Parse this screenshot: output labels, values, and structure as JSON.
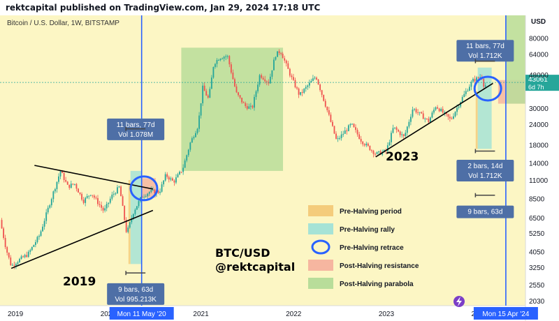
{
  "header": {
    "published": "rektcapital published on TradingView.com, Jan 29, 2024 17:18 UTC"
  },
  "chart_data": {
    "type": "candlestick",
    "symbol_line": "Bitcoin / U.S. Dollar, 1W, BITSTAMP",
    "currency": "USD",
    "scale": "log",
    "y_ticks": [
      2030,
      2550,
      3250,
      4050,
      5250,
      6500,
      8500,
      11000,
      14000,
      18000,
      24000,
      30000,
      48000,
      64000,
      80000
    ],
    "x_ticks": [
      "2019",
      "2020",
      "2021",
      "2022",
      "2023",
      "2024"
    ],
    "x_range": [
      "2018-11",
      "2024-07"
    ],
    "y_range": [
      1900,
      110000
    ],
    "grid": false,
    "price_path": [
      [
        "2018-11-01",
        6300
      ],
      [
        "2018-11-25",
        4200
      ],
      [
        "2018-12-15",
        3300
      ],
      [
        "2019-01-15",
        3600
      ],
      [
        "2019-02-20",
        3900
      ],
      [
        "2019-04-05",
        5100
      ],
      [
        "2019-05-15",
        8000
      ],
      [
        "2019-06-26",
        12500
      ],
      [
        "2019-07-25",
        10000
      ],
      [
        "2019-08-20",
        10500
      ],
      [
        "2019-09-25",
        8200
      ],
      [
        "2019-10-25",
        9200
      ],
      [
        "2019-12-15",
        7100
      ],
      [
        "2020-01-15",
        8800
      ],
      [
        "2020-02-15",
        10000
      ],
      [
        "2020-03-13",
        5200
      ],
      [
        "2020-04-10",
        7100
      ],
      [
        "2020-05-11",
        8700
      ],
      [
        "2020-06-15",
        9400
      ],
      [
        "2020-07-20",
        9300
      ],
      [
        "2020-08-15",
        11800
      ],
      [
        "2020-09-15",
        10700
      ],
      [
        "2020-10-20",
        12800
      ],
      [
        "2020-11-20",
        18500
      ],
      [
        "2020-12-20",
        23500
      ],
      [
        "2021-01-08",
        40000
      ],
      [
        "2021-02-01",
        34000
      ],
      [
        "2021-02-21",
        56000
      ],
      [
        "2021-03-13",
        61000
      ],
      [
        "2021-04-14",
        62500
      ],
      [
        "2021-05-19",
        37000
      ],
      [
        "2021-06-22",
        31000
      ],
      [
        "2021-07-20",
        30000
      ],
      [
        "2021-08-20",
        48000
      ],
      [
        "2021-09-25",
        43000
      ],
      [
        "2021-10-20",
        63000
      ],
      [
        "2021-11-10",
        67000
      ],
      [
        "2021-12-20",
        47000
      ],
      [
        "2022-01-24",
        36000
      ],
      [
        "2022-03-28",
        47000
      ],
      [
        "2022-05-12",
        29000
      ],
      [
        "2022-06-18",
        19000
      ],
      [
        "2022-08-15",
        24000
      ],
      [
        "2022-09-25",
        19000
      ],
      [
        "2022-11-21",
        15800
      ],
      [
        "2022-12-31",
        16500
      ],
      [
        "2023-01-29",
        23000
      ],
      [
        "2023-03-10",
        20000
      ],
      [
        "2023-04-14",
        30000
      ],
      [
        "2023-06-15",
        25000
      ],
      [
        "2023-07-13",
        31000
      ],
      [
        "2023-09-11",
        25500
      ],
      [
        "2023-10-25",
        34500
      ],
      [
        "2023-12-05",
        44000
      ],
      [
        "2024-01-11",
        47000
      ],
      [
        "2024-01-23",
        39500
      ],
      [
        "2024-01-29",
        43061
      ]
    ],
    "current_price": {
      "value": "43061",
      "countdown": "6d 7h"
    },
    "halving_markers": [
      {
        "date": "2020-05-11",
        "label": "Mon 11 May '20"
      },
      {
        "date": "2024-04-15",
        "label": "Mon 15 Apr '24"
      }
    ],
    "zones": [
      {
        "legend": "pre_halving_period",
        "x": [
          "2020-03-20",
          "2020-03-28"
        ],
        "y": [
          3400,
          11000
        ]
      },
      {
        "legend": "pre_halving_rally",
        "x": [
          "2020-03-28",
          "2020-05-11"
        ],
        "y": [
          3400,
          12500
        ]
      },
      {
        "legend": "post_halving_resistance",
        "x": [
          "2020-05-11",
          "2020-07-06"
        ],
        "y": [
          8600,
          11300
        ]
      },
      {
        "legend": "post_halving_parabola",
        "x": [
          "2020-10-15",
          "2021-11-20"
        ],
        "y": [
          12500,
          70000
        ]
      },
      {
        "legend": "pre_halving_period",
        "x": [
          "2023-12-18",
          "2023-12-26"
        ],
        "y": [
          17000,
          38000
        ]
      },
      {
        "legend": "pre_halving_rally",
        "x": [
          "2023-12-26",
          "2024-02-20"
        ],
        "y": [
          17000,
          53000
        ]
      },
      {
        "legend": "post_halving_resistance",
        "x": [
          "2024-03-15",
          "2024-06-30"
        ],
        "y": [
          32000,
          44500
        ]
      },
      {
        "legend": "post_halving_parabola",
        "x": [
          "2024-04-15",
          "2024-06-30"
        ],
        "y": [
          32000,
          110000
        ]
      }
    ],
    "circles": [
      {
        "date": "2020-05-20",
        "price": 9800
      },
      {
        "date": "2024-02-05",
        "price": 39500
      }
    ],
    "trendlines": [
      {
        "from": [
          "2018-12-15",
          3200
        ],
        "to": [
          "2020-06-25",
          7200
        ]
      },
      {
        "from": [
          "2019-03-15",
          13500
        ],
        "to": [
          "2020-06-25",
          9700
        ]
      },
      {
        "from": [
          "2022-11-20",
          15200
        ],
        "to": [
          "2024-02-25",
          42500
        ]
      }
    ],
    "measures": [
      {
        "top": "11 bars, 77d",
        "bottom": "Vol 1.078M",
        "date": "2020-04-18",
        "price_top": 26000,
        "bar_price": 22500
      },
      {
        "top": "9 bars, 63d",
        "bottom": "Vol 995.213K",
        "date": "2020-04-18",
        "price_top": 2600,
        "bar_price": 3000
      },
      {
        "top": "11 bars, 77d",
        "bottom": "Vol 1.712K",
        "date": "2024-01-25",
        "price_top": 78000,
        "bar_price": 58000
      },
      {
        "top": "2 bars, 14d",
        "bottom": "Vol 1.712K",
        "date": "2024-01-25",
        "price_top": 14600,
        "bar_price": 16500
      },
      {
        "top": "9 bars, 63d",
        "bottom": "",
        "date": "2024-01-25",
        "price_top": 7700,
        "bar_price": 8900
      }
    ],
    "annotations": {
      "year_2019": "2019",
      "year_2023": "2023",
      "watermark_1": "BTC/USD",
      "watermark_2": "@rektcapital"
    },
    "legend": [
      {
        "key": "pre_halving_period",
        "label": "Pre-Halving period",
        "color": "#f4cc7c",
        "kind": "rect"
      },
      {
        "key": "pre_halving_rally",
        "label": "Pre-Halving rally",
        "color": "#a6e3d6",
        "kind": "rect"
      },
      {
        "key": "pre_halving_retrace",
        "label": "Pre-Halving retrace",
        "color": "#2962ff",
        "kind": "circle"
      },
      {
        "key": "post_halving_resistance",
        "label": "Post-Halving resistance",
        "color": "#f6b6a0",
        "kind": "rect"
      },
      {
        "key": "post_halving_parabola",
        "label": "Post-Halving parabola",
        "color": "#b8dd9a",
        "kind": "rect"
      }
    ],
    "colors": {
      "background": "#fcf6c4",
      "up": "#26a69a",
      "down": "#ef5350",
      "halving_line": "#2962ff",
      "label_bg": "#4e6fa6",
      "trendline": "#000000"
    }
  }
}
